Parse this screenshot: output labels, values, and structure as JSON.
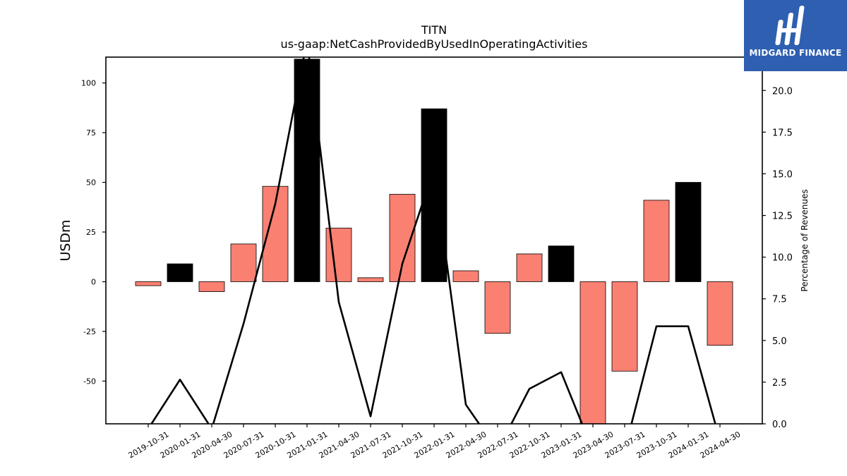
{
  "chart_data": {
    "type": "bar",
    "title": "TITN",
    "subtitle": "us-gaap:NetCashProvidedByUsedInOperatingActivities",
    "ylabel": "USDm",
    "y2label": "Percentage of Revenues",
    "categories": [
      "2019-10-31",
      "2020-01-31",
      "2020-04-30",
      "2020-07-31",
      "2020-10-31",
      "2021-01-31",
      "2021-04-30",
      "2021-07-31",
      "2021-10-31",
      "2022-01-31",
      "2022-04-30",
      "2022-07-31",
      "2022-10-31",
      "2023-01-31",
      "2023-04-30",
      "2023-07-31",
      "2023-10-31",
      "2024-01-31",
      "2024-04-30"
    ],
    "values": [
      -2,
      9,
      -5,
      19,
      48,
      112,
      27,
      2,
      44,
      87,
      5.5,
      -26,
      14,
      18,
      -73,
      -45,
      41,
      50,
      -32
    ],
    "highlight": [
      false,
      true,
      false,
      false,
      false,
      true,
      false,
      false,
      false,
      true,
      false,
      false,
      false,
      true,
      false,
      false,
      false,
      true,
      false
    ],
    "line_values": [
      -0.3,
      2.65,
      -0.3,
      6.0,
      13.2,
      23.0,
      7.3,
      0.45,
      9.6,
      15.3,
      1.15,
      -1.6,
      2.1,
      3.1,
      -1.6,
      -1.6,
      5.85,
      5.85,
      -1.0
    ],
    "ylim": [
      -71.5,
      113
    ],
    "y2lim": [
      0,
      22
    ],
    "yticks": [
      -50,
      -25,
      0,
      25,
      50,
      75,
      100
    ],
    "y2ticks": [
      0.0,
      2.5,
      5.0,
      7.5,
      10.0,
      12.5,
      15.0,
      17.5,
      20.0
    ],
    "colors": {
      "bar": "#fa8072",
      "highlight": "#000000",
      "line": "#000000",
      "logo_bg": "#2f5fb0"
    }
  },
  "logo": {
    "text": "MIDGARD FINANCE"
  }
}
